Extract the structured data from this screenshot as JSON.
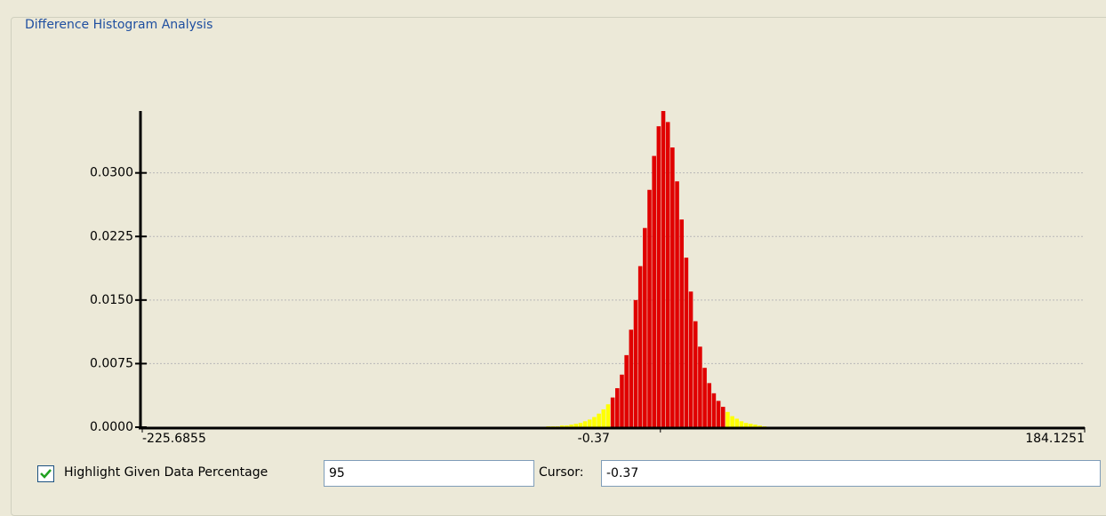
{
  "panel": {
    "title": "Difference Histogram Analysis"
  },
  "chart_data": {
    "type": "histogram",
    "bins": [
      -50,
      -48,
      -46,
      -44,
      -42,
      -40,
      -38,
      -36,
      -34,
      -32,
      -30,
      -28,
      -26,
      -24,
      -22,
      -20,
      -18,
      -16,
      -14,
      -12,
      -10,
      -8,
      -6,
      -4,
      -2,
      0,
      2,
      4,
      6,
      8,
      10,
      12,
      14,
      16,
      18,
      20,
      22,
      24,
      26,
      28,
      30,
      32,
      34,
      36,
      38,
      40,
      42,
      44,
      46
    ],
    "values": [
      0.0001,
      0.0001,
      0.0001,
      0.0002,
      0.0002,
      0.0003,
      0.0004,
      0.0005,
      0.0007,
      0.0009,
      0.0012,
      0.0016,
      0.0021,
      0.0027,
      0.0035,
      0.0046,
      0.0062,
      0.0085,
      0.0115,
      0.015,
      0.019,
      0.0235,
      0.028,
      0.032,
      0.0355,
      0.0373,
      0.036,
      0.033,
      0.029,
      0.0245,
      0.02,
      0.016,
      0.0125,
      0.0095,
      0.007,
      0.0052,
      0.004,
      0.0031,
      0.0024,
      0.0018,
      0.0013,
      0.001,
      0.0007,
      0.0005,
      0.0004,
      0.0003,
      0.0002,
      0.0001
    ],
    "color": "#ffff00",
    "highlight_color": "#e00000",
    "highlight_range": [
      -22,
      28
    ],
    "xlim": [
      -225.6855,
      184.1251
    ],
    "xticks": [
      -225.6855,
      -0.37,
      184.1251
    ],
    "ylim": [
      0,
      0.0373
    ],
    "yticks": [
      {
        "value": 0,
        "label": "0.0000"
      },
      {
        "value": 0.0075,
        "label": "0.0075"
      },
      {
        "value": 0.015,
        "label": "0.0150"
      },
      {
        "value": 0.0225,
        "label": "0.0225"
      },
      {
        "value": 0.03,
        "label": "0.0300"
      }
    ],
    "grid": true
  },
  "controls": {
    "highlight_label": "Highlight Given Data Percentage",
    "highlight_checked": true,
    "percentage": "95",
    "cursor_label": "Cursor:",
    "cursor_value": "-0.37"
  }
}
